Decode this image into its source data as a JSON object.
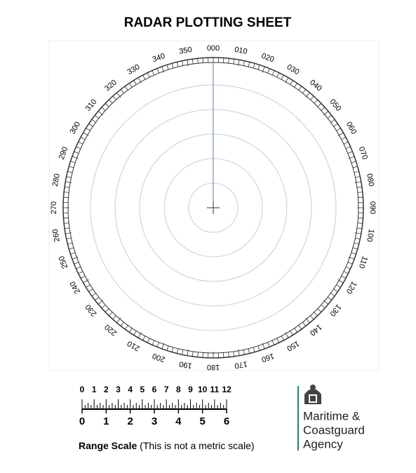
{
  "title": "RADAR PLOTTING SHEET",
  "bearings": [
    "000",
    "010",
    "020",
    "030",
    "040",
    "050",
    "060",
    "070",
    "080",
    "090",
    "100",
    "110",
    "120",
    "130",
    "140",
    "150",
    "160",
    "170",
    "180",
    "190",
    "200",
    "210",
    "220",
    "230",
    "240",
    "250",
    "260",
    "270",
    "280",
    "290",
    "300",
    "310",
    "320",
    "330",
    "340",
    "350"
  ],
  "range_scale": {
    "top_labels": [
      "0",
      "1",
      "2",
      "3",
      "4",
      "5",
      "6",
      "7",
      "8",
      "9",
      "10",
      "11",
      "12"
    ],
    "bottom_labels": [
      "0",
      "1",
      "2",
      "3",
      "4",
      "5",
      "6"
    ],
    "caption": "Range Scale",
    "note": "(This is not a metric scale)"
  },
  "logo": {
    "lines": [
      "Maritime &",
      "Coastguard",
      "Agency"
    ]
  }
}
